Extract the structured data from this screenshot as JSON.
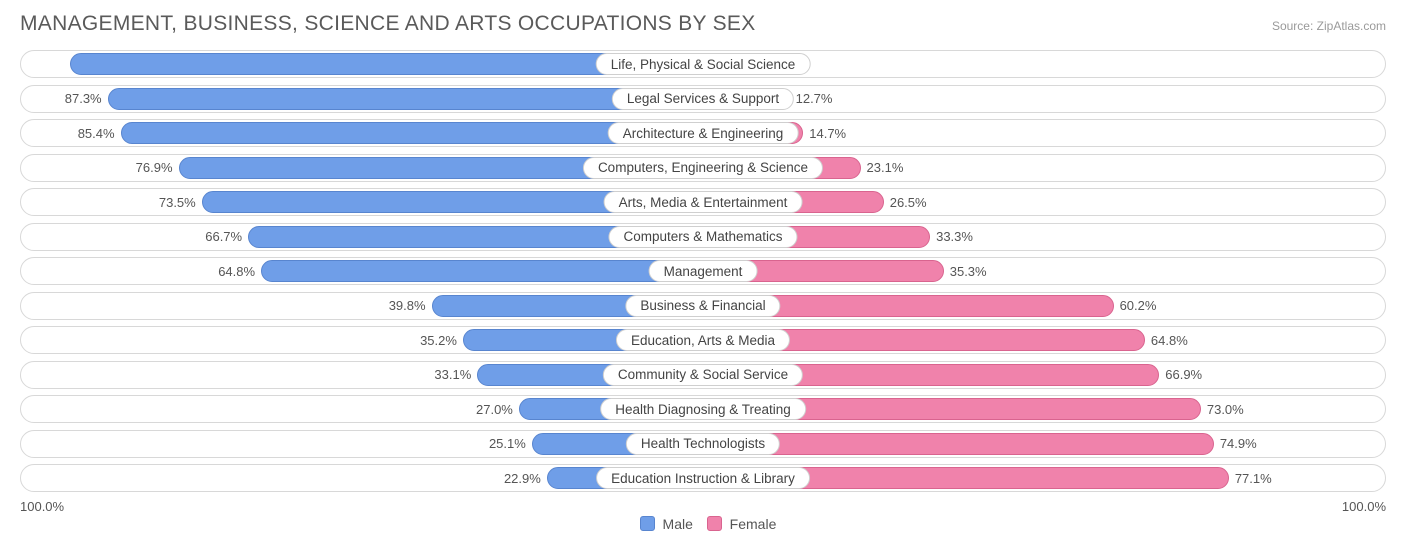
{
  "title": "MANAGEMENT, BUSINESS, SCIENCE AND ARTS OCCUPATIONS BY SEX",
  "source": "Source: ZipAtlas.com",
  "axis": {
    "left": "100.0%",
    "right": "100.0%"
  },
  "legend": {
    "male": {
      "label": "Male",
      "fill": "#6f9ee8",
      "border": "#5885cf"
    },
    "female": {
      "label": "Female",
      "fill": "#f082ab",
      "border": "#d9648f"
    }
  },
  "colors": {
    "male_fill": "#6f9ee8",
    "male_border": "#5885cf",
    "female_fill": "#f082ab",
    "female_border": "#d9648f",
    "row_border": "#d8d8d8",
    "label_border": "#cfcfcf",
    "text": "#555555",
    "title_text": "#5a5a5a",
    "source_text": "#9a9a9a",
    "background": "#ffffff"
  },
  "rows": [
    {
      "category": "Life, Physical & Social Science",
      "male": 92.8,
      "female": 7.2
    },
    {
      "category": "Legal Services & Support",
      "male": 87.3,
      "female": 12.7
    },
    {
      "category": "Architecture & Engineering",
      "male": 85.4,
      "female": 14.7
    },
    {
      "category": "Computers, Engineering & Science",
      "male": 76.9,
      "female": 23.1
    },
    {
      "category": "Arts, Media & Entertainment",
      "male": 73.5,
      "female": 26.5
    },
    {
      "category": "Computers & Mathematics",
      "male": 66.7,
      "female": 33.3
    },
    {
      "category": "Management",
      "male": 64.8,
      "female": 35.3
    },
    {
      "category": "Business & Financial",
      "male": 39.8,
      "female": 60.2
    },
    {
      "category": "Education, Arts & Media",
      "male": 35.2,
      "female": 64.8
    },
    {
      "category": "Community & Social Service",
      "male": 33.1,
      "female": 66.9
    },
    {
      "category": "Health Diagnosing & Treating",
      "male": 27.0,
      "female": 73.0
    },
    {
      "category": "Health Technologists",
      "male": 25.1,
      "female": 74.9
    },
    {
      "category": "Education Instruction & Library",
      "male": 22.9,
      "female": 77.1
    }
  ]
}
